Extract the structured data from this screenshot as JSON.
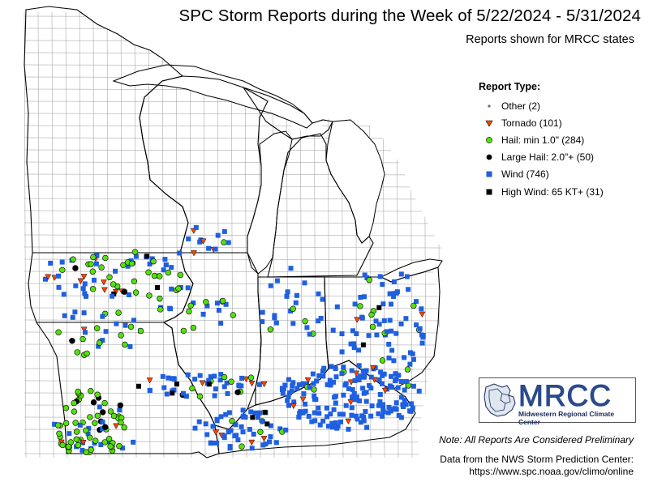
{
  "title": "SPC Storm Reports during the Week of 5/22/2024 - 5/31/2024",
  "subtitle": "Reports shown for MRCC states",
  "legend": {
    "title": "Report Type:",
    "items": [
      {
        "label": "Other (2)",
        "shape": "small-dot",
        "color": "#6b6b6b"
      },
      {
        "label": "Tornado (101)",
        "shape": "triangle-down",
        "color": "#ff4500"
      },
      {
        "label": "Hail: min 1.0\" (284)",
        "shape": "circle",
        "color": "#55e00c"
      },
      {
        "label": "Large Hail: 2.0\"+ (50)",
        "shape": "circle",
        "color": "#000000"
      },
      {
        "label": "Wind (746)",
        "shape": "square",
        "color": "#1f5fe0"
      },
      {
        "label": "High Wind: 65 KT+ (31)",
        "shape": "square",
        "color": "#000000"
      }
    ]
  },
  "logo": {
    "text": "MRCC",
    "subtext": "Midwestern Regional Climate Center"
  },
  "note": "Note: All Reports Are Considered Preliminary",
  "credit": {
    "line1": "Data from the NWS Storm Prediction Center:",
    "line2": "https://www.spc.noaa.gov/climo/online"
  },
  "colors": {
    "tornado": "#ff4500",
    "hail": "#55e00c",
    "wind": "#1f5fe0",
    "severe": "#000000",
    "lake": "#ffffff",
    "county_lines": "#9a9a9a",
    "state_lines": "#000000"
  }
}
